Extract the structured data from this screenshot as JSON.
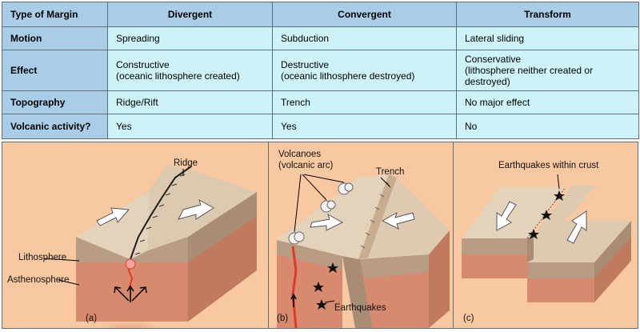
{
  "table": {
    "header": {
      "corner": "Type of Margin",
      "columns": [
        "Divergent",
        "Convergent",
        "Transform"
      ]
    },
    "rows": [
      {
        "label": "Motion",
        "cells": [
          "Spreading",
          "Subduction",
          "Lateral sliding"
        ]
      },
      {
        "label": "Effect",
        "cells": [
          "Constructive\n(oceanic lithosphere created)",
          "Destructive\n(oceanic lithosphere destroyed)",
          "Conservative\n(lithosphere neither created or\ndestroyed)"
        ]
      },
      {
        "label": "Topography",
        "cells": [
          "Ridge/Rift",
          "Trench",
          "No major effect"
        ]
      },
      {
        "label": "Volcanic activity?",
        "cells": [
          "Yes",
          "Yes",
          "No"
        ]
      }
    ]
  },
  "panels": {
    "a": {
      "tag": "(a)",
      "ridge": "Ridge",
      "lithosphere": "Lithosphere",
      "asthenosphere": "Asthenosphere"
    },
    "b": {
      "tag": "(b)",
      "volcanoes": "Volcanoes\n(volcanic arc)",
      "trench": "Trench",
      "earthquakes": "Earthquakes"
    },
    "c": {
      "tag": "(c)",
      "earthquakes_crust": "Earthquakes within crust"
    }
  },
  "colors": {
    "header_bg": "#a9cde6",
    "cell_bg": "#cdf2f8",
    "panel_bg": "#f8c9a1",
    "crust_top": "#e6d6bf",
    "crust_side": "#c9b299",
    "mantle": "#d78a6e",
    "magma": "#e03a25"
  }
}
